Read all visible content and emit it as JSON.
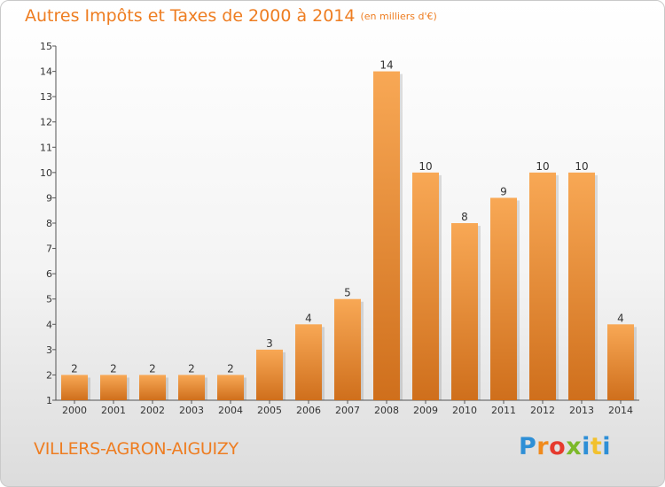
{
  "title": "Autres Impôts et Taxes de 2000 à 2014",
  "subtitle": "(en milliers d'€)",
  "commune": "VILLERS-AGRON-AIGUIZY",
  "logo": {
    "text": "Proxiti"
  },
  "colors": {
    "accent": "#ee7d21",
    "bar_light": "#f8a855",
    "bar_dark": "#cf6f1c"
  },
  "chart_data": {
    "type": "bar",
    "title": "Autres Impôts et Taxes de 2000 à 2014",
    "subtitle": "(en milliers d'€)",
    "categories": [
      "2000",
      "2001",
      "2002",
      "2003",
      "2004",
      "2005",
      "2006",
      "2007",
      "2008",
      "2009",
      "2010",
      "2011",
      "2012",
      "2013",
      "2014"
    ],
    "values": [
      2,
      2,
      2,
      2,
      2,
      3,
      4,
      5,
      14,
      10,
      8,
      9,
      10,
      10,
      4
    ],
    "ylim": [
      1,
      15
    ],
    "yticks": [
      1,
      2,
      3,
      4,
      5,
      6,
      7,
      8,
      9,
      10,
      11,
      12,
      13,
      14,
      15
    ],
    "grid": false,
    "xlabel": "",
    "ylabel": ""
  }
}
